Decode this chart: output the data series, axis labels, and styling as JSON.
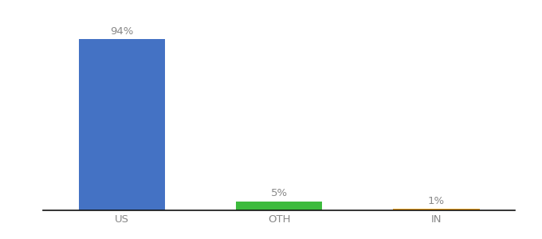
{
  "categories": [
    "US",
    "OTH",
    "IN"
  ],
  "values": [
    94,
    5,
    1
  ],
  "bar_colors": [
    "#4472c4",
    "#3dbb3d",
    "#f5a623"
  ],
  "label_texts": [
    "94%",
    "5%",
    "1%"
  ],
  "ylim": [
    0,
    105
  ],
  "background_color": "#ffffff",
  "label_fontsize": 9.5,
  "tick_fontsize": 9.5,
  "bar_width": 0.55,
  "xlim": [
    -0.5,
    2.5
  ]
}
